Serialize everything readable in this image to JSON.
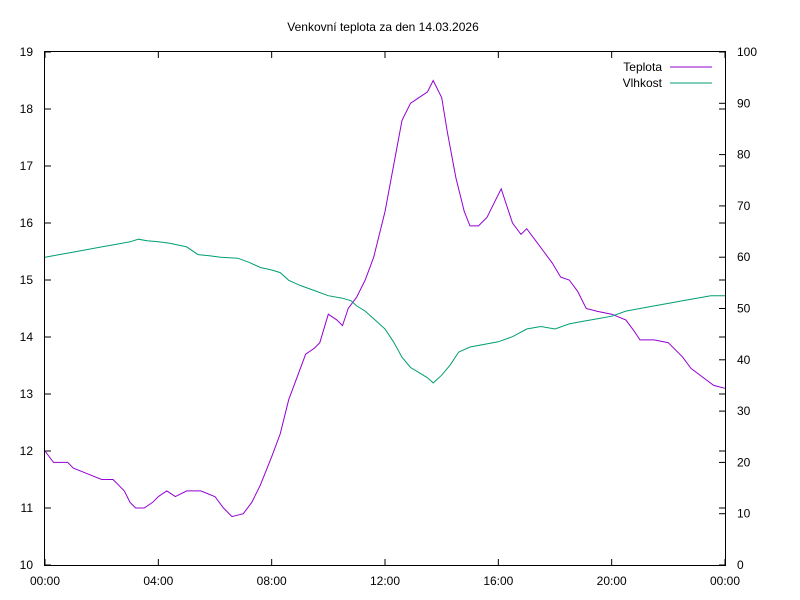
{
  "chart_data": {
    "type": "line",
    "title": "Venkovní teplota za den 14.03.2026",
    "x_ticks": [
      "00:00",
      "04:00",
      "08:00",
      "12:00",
      "16:00",
      "20:00",
      "00:00"
    ],
    "x_range_hours": [
      0,
      24
    ],
    "y_left": {
      "range": [
        10,
        19
      ],
      "ticks": [
        "10",
        "11",
        "12",
        "13",
        "14",
        "15",
        "16",
        "17",
        "18",
        "19"
      ]
    },
    "y_right": {
      "range": [
        0,
        100
      ],
      "ticks": [
        "0",
        "10",
        "20",
        "30",
        "40",
        "50",
        "60",
        "70",
        "80",
        "90",
        "100"
      ]
    },
    "grid": false,
    "legend_position": "top-right",
    "series": [
      {
        "name": "Teplota",
        "axis": "left",
        "color": "#9400d3",
        "points": [
          [
            0.0,
            12.0
          ],
          [
            0.3,
            11.8
          ],
          [
            0.8,
            11.8
          ],
          [
            1.0,
            11.7
          ],
          [
            1.5,
            11.6
          ],
          [
            2.0,
            11.5
          ],
          [
            2.4,
            11.5
          ],
          [
            2.6,
            11.4
          ],
          [
            2.8,
            11.3
          ],
          [
            3.0,
            11.1
          ],
          [
            3.2,
            11.0
          ],
          [
            3.5,
            11.0
          ],
          [
            3.8,
            11.1
          ],
          [
            4.0,
            11.2
          ],
          [
            4.3,
            11.3
          ],
          [
            4.6,
            11.2
          ],
          [
            5.0,
            11.3
          ],
          [
            5.5,
            11.3
          ],
          [
            6.0,
            11.2
          ],
          [
            6.3,
            11.0
          ],
          [
            6.6,
            10.85
          ],
          [
            7.0,
            10.9
          ],
          [
            7.3,
            11.1
          ],
          [
            7.6,
            11.4
          ],
          [
            8.0,
            11.9
          ],
          [
            8.3,
            12.3
          ],
          [
            8.6,
            12.9
          ],
          [
            8.9,
            13.3
          ],
          [
            9.2,
            13.7
          ],
          [
            9.5,
            13.8
          ],
          [
            9.7,
            13.9
          ],
          [
            10.0,
            14.4
          ],
          [
            10.3,
            14.3
          ],
          [
            10.5,
            14.2
          ],
          [
            10.7,
            14.5
          ],
          [
            11.0,
            14.7
          ],
          [
            11.3,
            15.0
          ],
          [
            11.6,
            15.4
          ],
          [
            12.0,
            16.2
          ],
          [
            12.3,
            17.0
          ],
          [
            12.6,
            17.8
          ],
          [
            12.9,
            18.1
          ],
          [
            13.2,
            18.2
          ],
          [
            13.5,
            18.3
          ],
          [
            13.7,
            18.5
          ],
          [
            14.0,
            18.2
          ],
          [
            14.2,
            17.6
          ],
          [
            14.5,
            16.8
          ],
          [
            14.8,
            16.2
          ],
          [
            15.0,
            15.95
          ],
          [
            15.3,
            15.95
          ],
          [
            15.6,
            16.1
          ],
          [
            15.9,
            16.4
          ],
          [
            16.1,
            16.6
          ],
          [
            16.3,
            16.3
          ],
          [
            16.5,
            16.0
          ],
          [
            16.8,
            15.8
          ],
          [
            17.0,
            15.9
          ],
          [
            17.3,
            15.7
          ],
          [
            17.6,
            15.5
          ],
          [
            17.9,
            15.3
          ],
          [
            18.2,
            15.05
          ],
          [
            18.5,
            15.0
          ],
          [
            18.8,
            14.8
          ],
          [
            19.1,
            14.5
          ],
          [
            19.5,
            14.45
          ],
          [
            20.0,
            14.4
          ],
          [
            20.5,
            14.3
          ],
          [
            20.8,
            14.1
          ],
          [
            21.0,
            13.95
          ],
          [
            21.5,
            13.95
          ],
          [
            22.0,
            13.9
          ],
          [
            22.5,
            13.65
          ],
          [
            22.8,
            13.45
          ],
          [
            23.2,
            13.3
          ],
          [
            23.6,
            13.15
          ],
          [
            24.0,
            13.1
          ]
        ]
      },
      {
        "name": "Vlhkost",
        "axis": "right",
        "color": "#009e73",
        "points": [
          [
            0.0,
            60.0
          ],
          [
            0.5,
            60.5
          ],
          [
            1.0,
            61.0
          ],
          [
            1.5,
            61.5
          ],
          [
            2.0,
            62.0
          ],
          [
            2.5,
            62.5
          ],
          [
            3.0,
            63.0
          ],
          [
            3.3,
            63.5
          ],
          [
            3.6,
            63.2
          ],
          [
            4.0,
            63.0
          ],
          [
            4.4,
            62.7
          ],
          [
            5.0,
            62.0
          ],
          [
            5.4,
            60.5
          ],
          [
            5.8,
            60.3
          ],
          [
            6.2,
            60.0
          ],
          [
            6.8,
            59.8
          ],
          [
            7.2,
            59.0
          ],
          [
            7.6,
            58.0
          ],
          [
            8.0,
            57.5
          ],
          [
            8.3,
            57.0
          ],
          [
            8.6,
            55.5
          ],
          [
            9.0,
            54.5
          ],
          [
            9.5,
            53.5
          ],
          [
            10.0,
            52.5
          ],
          [
            10.5,
            52.0
          ],
          [
            10.8,
            51.5
          ],
          [
            11.0,
            50.5
          ],
          [
            11.3,
            49.5
          ],
          [
            11.7,
            47.5
          ],
          [
            12.0,
            46.0
          ],
          [
            12.3,
            43.5
          ],
          [
            12.6,
            40.5
          ],
          [
            12.9,
            38.5
          ],
          [
            13.2,
            37.5
          ],
          [
            13.5,
            36.5
          ],
          [
            13.7,
            35.5
          ],
          [
            14.0,
            37.0
          ],
          [
            14.3,
            39.0
          ],
          [
            14.6,
            41.5
          ],
          [
            15.0,
            42.5
          ],
          [
            15.5,
            43.0
          ],
          [
            16.0,
            43.5
          ],
          [
            16.5,
            44.5
          ],
          [
            17.0,
            46.0
          ],
          [
            17.5,
            46.5
          ],
          [
            18.0,
            46.0
          ],
          [
            18.5,
            47.0
          ],
          [
            19.0,
            47.5
          ],
          [
            19.5,
            48.0
          ],
          [
            20.0,
            48.5
          ],
          [
            20.5,
            49.5
          ],
          [
            21.0,
            50.0
          ],
          [
            21.5,
            50.5
          ],
          [
            22.0,
            51.0
          ],
          [
            22.5,
            51.5
          ],
          [
            23.0,
            52.0
          ],
          [
            23.5,
            52.5
          ],
          [
            24.0,
            52.5
          ]
        ]
      }
    ]
  }
}
